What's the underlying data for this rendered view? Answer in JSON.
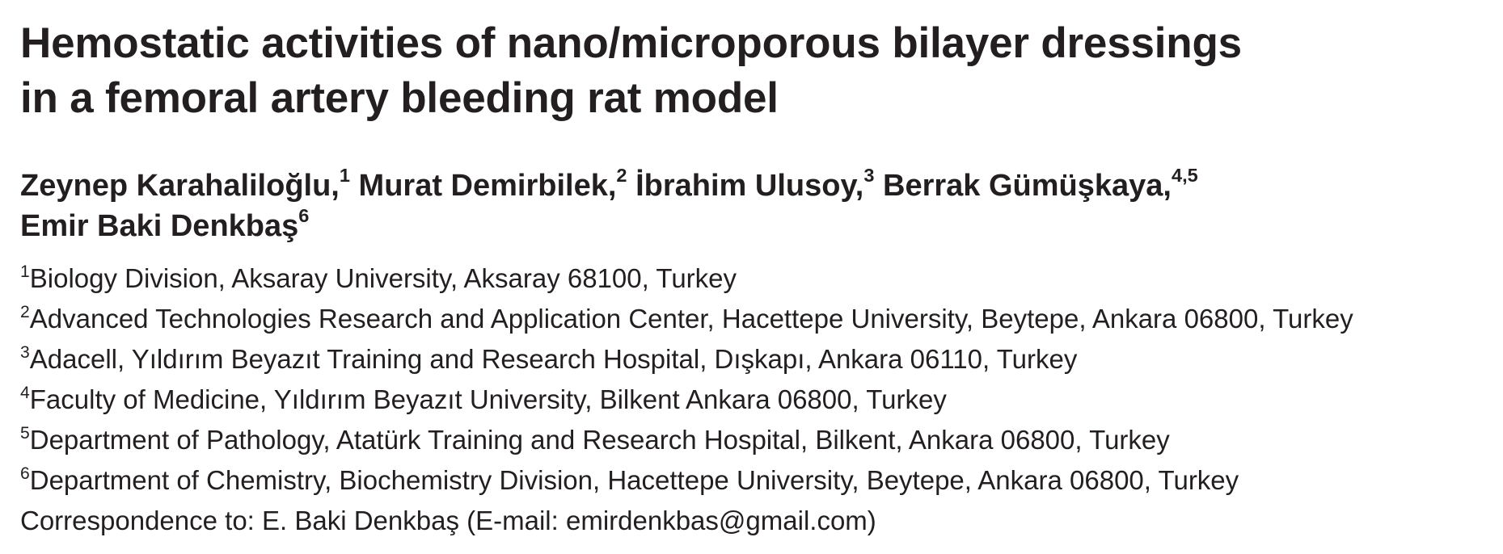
{
  "paper": {
    "title_lines": [
      "Hemostatic activities of nano/microporous bilayer dressings",
      "in a femoral artery bleeding rat model"
    ],
    "authors": [
      {
        "name": "Zeynep Karahaliloğlu,",
        "sup": "1"
      },
      {
        "name": "Murat Demirbilek,",
        "sup": "2"
      },
      {
        "name": "İbrahim Ulusoy,",
        "sup": "3"
      },
      {
        "name": "Berrak Gümüşkaya,",
        "sup": "4,5"
      },
      {
        "name": "Emir Baki Denkbaş",
        "sup": "6"
      }
    ],
    "affiliations": [
      {
        "sup": "1",
        "text": "Biology Division, Aksaray University, Aksaray 68100, Turkey"
      },
      {
        "sup": "2",
        "text": "Advanced Technologies Research and Application Center, Hacettepe University, Beytepe, Ankara 06800, Turkey"
      },
      {
        "sup": "3",
        "text": "Adacell, Yıldırım Beyazıt Training and Research Hospital, Dışkapı, Ankara 06110, Turkey"
      },
      {
        "sup": "4",
        "text": "Faculty of Medicine, Yıldırım Beyazıt University, Bilkent Ankara 06800, Turkey"
      },
      {
        "sup": "5",
        "text": "Department of Pathology, Atatürk Training and Research Hospital, Bilkent, Ankara 06800, Turkey"
      },
      {
        "sup": "6",
        "text": "Department of Chemistry, Biochemistry Division, Hacettepe University, Beytepe, Ankara 06800, Turkey"
      }
    ],
    "correspondence": {
      "prefix": "Correspondence to: E. Baki Denkbaş (E-mail: ",
      "email": "emirdenkbas@gmail.com",
      "suffix": ")"
    }
  },
  "colors": {
    "text": "#231f20",
    "background": "#ffffff"
  }
}
